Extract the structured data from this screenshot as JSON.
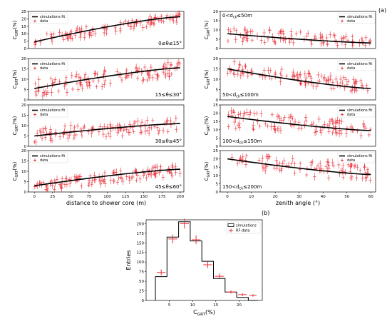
{
  "labels": {
    "panel_a": "(a)",
    "panel_b": "(b)"
  },
  "chart_data": [
    {
      "id": "L1",
      "type": "scatter",
      "ylabel": "C_GRT(%)",
      "xlabel": "",
      "ylim": [
        0,
        25
      ],
      "xlim": [
        -8,
        205
      ],
      "yticks": [
        0,
        5,
        10,
        15,
        20,
        25
      ],
      "xticks": [],
      "annotation": "0≤θ≤15°",
      "legend": {
        "position": "top-left",
        "entries": [
          "simulations fit",
          "data"
        ]
      },
      "fit": {
        "x": [
          0,
          200
        ],
        "y": [
          4.5,
          21.5
        ]
      },
      "data_band": {
        "x_range": [
          0,
          200
        ],
        "y_at_start": [
          2,
          9
        ],
        "y_at_end": [
          18,
          25
        ],
        "count": 110
      }
    },
    {
      "id": "L2",
      "type": "scatter",
      "ylabel": "C_GRT(%)",
      "xlabel": "",
      "ylim": [
        0,
        20
      ],
      "xlim": [
        -8,
        205
      ],
      "yticks": [
        0,
        5,
        10,
        15,
        20
      ],
      "xticks": [],
      "annotation": "15≤θ≤30°",
      "legend": {
        "position": "top-left",
        "entries": [
          "simulations fit",
          "data"
        ]
      },
      "fit": {
        "x": [
          0,
          200
        ],
        "y": [
          5.5,
          15.5
        ]
      },
      "data_band": {
        "x_range": [
          0,
          200
        ],
        "y_at_start": [
          1,
          10
        ],
        "y_at_end": [
          12,
          19
        ],
        "count": 120
      }
    },
    {
      "id": "L3",
      "type": "scatter",
      "ylabel": "C_GRT(%)",
      "xlabel": "",
      "ylim": [
        0,
        20
      ],
      "xlim": [
        -8,
        205
      ],
      "yticks": [
        0,
        5,
        10,
        15,
        20
      ],
      "xticks": [],
      "annotation": "30≤θ≤45°",
      "legend": {
        "position": "top-left",
        "entries": [
          "simulations fit",
          "data"
        ]
      },
      "fit": {
        "x": [
          0,
          200
        ],
        "y": [
          5.0,
          11.0
        ]
      },
      "data_band": {
        "x_range": [
          0,
          200
        ],
        "y_at_start": [
          2,
          9
        ],
        "y_at_end": [
          7,
          14
        ],
        "count": 110
      }
    },
    {
      "id": "L4",
      "type": "scatter",
      "ylabel": "C_GRT(%)",
      "xlabel": "distance to shower core (m)",
      "ylim": [
        0,
        20
      ],
      "xlim": [
        -8,
        205
      ],
      "yticks": [
        0,
        5,
        10,
        15,
        20
      ],
      "xticks": [
        0,
        25,
        50,
        75,
        100,
        125,
        150,
        175,
        200
      ],
      "annotation": "45≤θ≤60°",
      "legend": {
        "position": "top-left",
        "entries": [
          "simulations fit",
          "data"
        ]
      },
      "fit": {
        "x": [
          0,
          200
        ],
        "y": [
          3.0,
          11.0
        ]
      },
      "data_band": {
        "x_range": [
          0,
          200
        ],
        "y_at_start": [
          0,
          5
        ],
        "y_at_end": [
          8,
          14
        ],
        "count": 130
      }
    },
    {
      "id": "R1",
      "type": "scatter",
      "ylabel": "C_GRT(%)",
      "xlabel": "",
      "ylim": [
        0,
        20
      ],
      "xlim": [
        -3,
        62
      ],
      "yticks": [
        0,
        5,
        10,
        15,
        20
      ],
      "xticks": [],
      "annotation": "0<d_ck≤50m",
      "legend": {
        "position": "top-right",
        "entries": [
          "simulations fit",
          "data"
        ]
      },
      "fit": {
        "x": [
          0,
          60
        ],
        "y": [
          8.0,
          3.0
        ]
      },
      "data_band": {
        "x_range": [
          0,
          60
        ],
        "y_at_start": [
          4,
          12
        ],
        "y_at_end": [
          1,
          6
        ],
        "count": 95
      }
    },
    {
      "id": "R2",
      "type": "scatter",
      "ylabel": "C_GRT(%)",
      "xlabel": "",
      "ylim": [
        0,
        20
      ],
      "xlim": [
        -3,
        62
      ],
      "yticks": [
        0,
        5,
        10,
        15,
        20
      ],
      "xticks": [],
      "annotation": "50<d_ck≤100m",
      "legend": {
        "position": "top-right",
        "entries": [
          "simulations fit",
          "data"
        ]
      },
      "fit": {
        "x": [
          0,
          60
        ],
        "y": [
          15.0,
          5.5
        ]
      },
      "data_band": {
        "x_range": [
          0,
          60
        ],
        "y_at_start": [
          12,
          19
        ],
        "y_at_end": [
          3,
          9
        ],
        "count": 110
      }
    },
    {
      "id": "R3",
      "type": "scatter",
      "ylabel": "C_GRT(%)",
      "xlabel": "",
      "ylim": [
        0,
        25
      ],
      "xlim": [
        -3,
        62
      ],
      "yticks": [
        0,
        5,
        10,
        15,
        20,
        25
      ],
      "xticks": [],
      "annotation": "100<d_ck≤150m",
      "legend": {
        "position": "top-right",
        "entries": [
          "simulations fit",
          "data"
        ]
      },
      "fit": {
        "x": [
          0,
          60
        ],
        "y": [
          18.0,
          9.5
        ]
      },
      "data_band": {
        "x_range": [
          0,
          60
        ],
        "y_at_start": [
          11,
          22
        ],
        "y_at_end": [
          6,
          14
        ],
        "count": 110
      }
    },
    {
      "id": "R4",
      "type": "scatter",
      "ylabel": "C_GRT(%)",
      "xlabel": "zenith angle (°)",
      "ylim": [
        0,
        25
      ],
      "xlim": [
        -3,
        62
      ],
      "yticks": [
        0,
        5,
        10,
        15,
        20,
        25
      ],
      "xticks": [
        0,
        10,
        20,
        30,
        40,
        50,
        60
      ],
      "annotation": "150<d_ck≤200m",
      "legend": {
        "position": "top-right",
        "entries": [
          "simulations fit",
          "data"
        ]
      },
      "fit": {
        "x": [
          0,
          60
        ],
        "y": [
          20.0,
          10.5
        ]
      },
      "data_band": {
        "x_range": [
          0,
          60
        ],
        "y_at_start": [
          14,
          24
        ],
        "y_at_end": [
          6,
          16
        ],
        "count": 95
      }
    },
    {
      "id": "B",
      "type": "bar",
      "ylabel": "Entries",
      "xlabel": "C_GRT(%)",
      "ylim": [
        0,
        210
      ],
      "xlim": [
        0,
        25
      ],
      "yticks": [
        0,
        25,
        50,
        75,
        100,
        125,
        150,
        175,
        200
      ],
      "xticks": [
        5,
        10,
        15,
        20
      ],
      "legend": {
        "position": "top-right",
        "entries": [
          "simulations",
          "RF-data"
        ]
      },
      "bin_edges": [
        2,
        4.5,
        7,
        9.5,
        12,
        14.5,
        17,
        19.5,
        22,
        24
      ],
      "series": [
        {
          "name": "simulations",
          "values": [
            62,
            165,
            205,
            155,
            102,
            57,
            22,
            8,
            0
          ]
        },
        {
          "name": "RF-data",
          "values": [
            73,
            160,
            200,
            158,
            93,
            63,
            22,
            15,
            13
          ]
        }
      ]
    }
  ]
}
